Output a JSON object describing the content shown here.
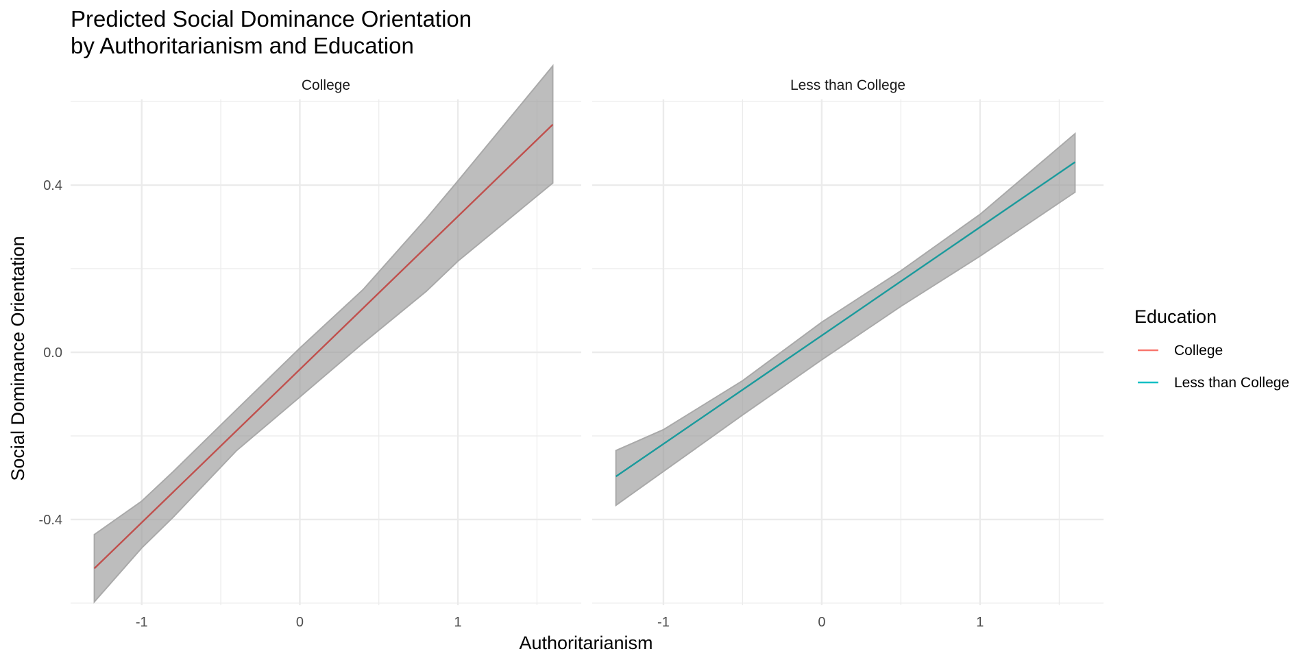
{
  "chart_data": {
    "type": "line",
    "title_lines": [
      "Predicted Social Dominance Orientation",
      "by Authoritarianism and Education"
    ],
    "xlabel": "Authoritarianism",
    "ylabel": "Social Dominance Orientation",
    "xlim": [
      -1.45,
      1.78
    ],
    "ylim": [
      -0.605,
      0.605
    ],
    "x_major_ticks": [
      {
        "value": -1,
        "label": "-1"
      },
      {
        "value": 0,
        "label": "0"
      },
      {
        "value": 1,
        "label": "1"
      }
    ],
    "x_minor_ticks": [
      -0.5,
      0.5,
      1.5
    ],
    "y_major_ticks": [
      {
        "value": -0.4,
        "label": "-0.4"
      },
      {
        "value": 0.0,
        "label": "0.0"
      },
      {
        "value": 0.4,
        "label": "0.4"
      }
    ],
    "y_minor_ticks": [
      -0.6,
      -0.2,
      0.2,
      0.6
    ],
    "grid": true,
    "legend": {
      "title": "Education",
      "position": "right",
      "entries": [
        {
          "label": "College",
          "color": "#F8766D"
        },
        {
          "label": "Less than College",
          "color": "#00BFC4"
        }
      ]
    },
    "panels": [
      {
        "strip": "College",
        "series": {
          "name": "College",
          "color": "#c0504d",
          "x": [
            -1.3,
            1.6
          ],
          "y": [
            -0.517,
            0.545
          ]
        },
        "ribbon": {
          "x": [
            -1.3,
            -1.0,
            -0.8,
            -0.4,
            0.0,
            0.4,
            0.8,
            1.0,
            1.6
          ],
          "lower": [
            -0.597,
            -0.468,
            -0.394,
            -0.235,
            -0.107,
            0.022,
            0.146,
            0.218,
            0.405
          ],
          "upper": [
            -0.436,
            -0.356,
            -0.285,
            -0.137,
            0.01,
            0.15,
            0.32,
            0.41,
            0.685
          ]
        }
      },
      {
        "strip": "Less than College",
        "series": {
          "name": "Less than College",
          "color": "#1a9a9c",
          "x": [
            -1.3,
            1.6
          ],
          "y": [
            -0.297,
            0.455
          ]
        },
        "ribbon": {
          "x": [
            -1.3,
            -1.0,
            -0.5,
            0.0,
            0.5,
            1.0,
            1.6
          ],
          "lower": [
            -0.366,
            -0.285,
            -0.15,
            -0.018,
            0.11,
            0.23,
            0.383
          ],
          "upper": [
            -0.235,
            -0.185,
            -0.068,
            0.072,
            0.195,
            0.33,
            0.523
          ]
        }
      }
    ]
  }
}
